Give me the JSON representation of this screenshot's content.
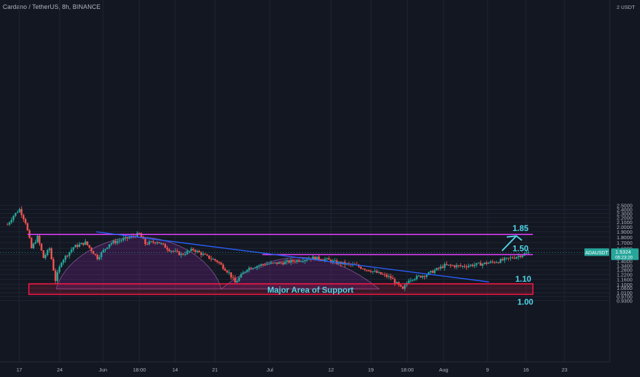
{
  "title": "Cardano / TetherUS, 8h, BINANCE",
  "currency_label": "2 USDT",
  "ticker_badge": {
    "label": "ADAUSDT",
    "price": "1.5324",
    "countdown": "05:23:20"
  },
  "colors": {
    "background": "#131722",
    "up": "#26a69a",
    "down": "#ef5350",
    "accent": "#4fd6e8",
    "resistance": "#e040fb",
    "trendline": "#2962ff",
    "support_box": "#ff1744"
  },
  "annotations": {
    "level_185": "1.85",
    "level_150": "1.50",
    "level_110": "1.10",
    "level_100": "1.00",
    "support_label": "Major Area of Support"
  },
  "chart_data": {
    "type": "candlestick",
    "title": "Cardano / TetherUS, 8h, BINANCE",
    "y_scale": "log",
    "ylim": [
      0.92,
      2.6
    ],
    "y_ticks": [
      "2.5000",
      "2.4000",
      "2.3000",
      "2.2000",
      "2.1000",
      "2.0000",
      "1.9000",
      "1.8000",
      "1.7000",
      "1.6000",
      "1.5000",
      "1.4000",
      "1.3400",
      "1.2800",
      "1.2200",
      "1.1600",
      "1.1000",
      "1.0600",
      "1.0100",
      "0.9700",
      "0.9300"
    ],
    "x_ticks": [
      "17",
      "24",
      "Jun",
      "18:00",
      "14",
      "21",
      "Jul",
      "12",
      "19",
      "18:00",
      "Aug",
      "9",
      "16",
      "23"
    ],
    "last_price": 1.5324,
    "price_series": {
      "x_label_anchors": [
        17,
        24,
        "Jun",
        "14",
        "21",
        "Jul",
        "12",
        "19",
        "Aug",
        "9"
      ],
      "close_path": [
        {
          "t": "May 15",
          "close": 2.05
        },
        {
          "t": "May 16",
          "close": 2.25
        },
        {
          "t": "May 17",
          "close": 2.4
        },
        {
          "t": "May 18",
          "close": 2.1
        },
        {
          "t": "May 19",
          "close": 1.6
        },
        {
          "t": "May 20",
          "close": 1.8
        },
        {
          "t": "May 21",
          "close": 1.45
        },
        {
          "t": "May 22",
          "close": 1.6
        },
        {
          "t": "May 23",
          "close": 1.15
        },
        {
          "t": "May 24",
          "close": 1.4
        },
        {
          "t": "May 26",
          "close": 1.62
        },
        {
          "t": "May 28",
          "close": 1.7
        },
        {
          "t": "May 30",
          "close": 1.45
        },
        {
          "t": "Jun 1",
          "close": 1.68
        },
        {
          "t": "Jun 4",
          "close": 1.78
        },
        {
          "t": "Jun 6",
          "close": 1.86
        },
        {
          "t": "Jun 7",
          "close": 1.68
        },
        {
          "t": "Jun 9",
          "close": 1.72
        },
        {
          "t": "Jun 11",
          "close": 1.58
        },
        {
          "t": "Jun 13",
          "close": 1.5
        },
        {
          "t": "Jun 15",
          "close": 1.58
        },
        {
          "t": "Jun 17",
          "close": 1.48
        },
        {
          "t": "Jun 19",
          "close": 1.4
        },
        {
          "t": "Jun 21",
          "close": 1.24
        },
        {
          "t": "Jun 22",
          "close": 1.12
        },
        {
          "t": "Jun 24",
          "close": 1.3
        },
        {
          "t": "Jun 27",
          "close": 1.36
        },
        {
          "t": "Jun 30",
          "close": 1.38
        },
        {
          "t": "Jul 3",
          "close": 1.42
        },
        {
          "t": "Jul 5",
          "close": 1.45
        },
        {
          "t": "Jul 7",
          "close": 1.43
        },
        {
          "t": "Jul 9",
          "close": 1.38
        },
        {
          "t": "Jul 12",
          "close": 1.34
        },
        {
          "t": "Jul 15",
          "close": 1.26
        },
        {
          "t": "Jul 18",
          "close": 1.18
        },
        {
          "t": "Jul 20",
          "close": 1.04
        },
        {
          "t": "Jul 21",
          "close": 1.16
        },
        {
          "t": "Jul 24",
          "close": 1.22
        },
        {
          "t": "Jul 27",
          "close": 1.34
        },
        {
          "t": "Jul 30",
          "close": 1.33
        },
        {
          "t": "Aug 2",
          "close": 1.36
        },
        {
          "t": "Aug 5",
          "close": 1.4
        },
        {
          "t": "Aug 8",
          "close": 1.47
        },
        {
          "t": "Aug 10",
          "close": 1.53
        }
      ]
    },
    "horizontal_lines": [
      {
        "name": "1.85",
        "value": 1.85
      },
      {
        "name": "1.50",
        "value": 1.5
      }
    ],
    "trendline": {
      "from": {
        "t": "Jun 1",
        "value": 1.9
      },
      "to": {
        "t": "Aug 17",
        "value": 1.15
      }
    },
    "support_zone": {
      "label": "Major Area of Support",
      "low": 1.0,
      "high": 1.1
    },
    "arrow": {
      "from": 1.56,
      "to": 1.85
    }
  }
}
